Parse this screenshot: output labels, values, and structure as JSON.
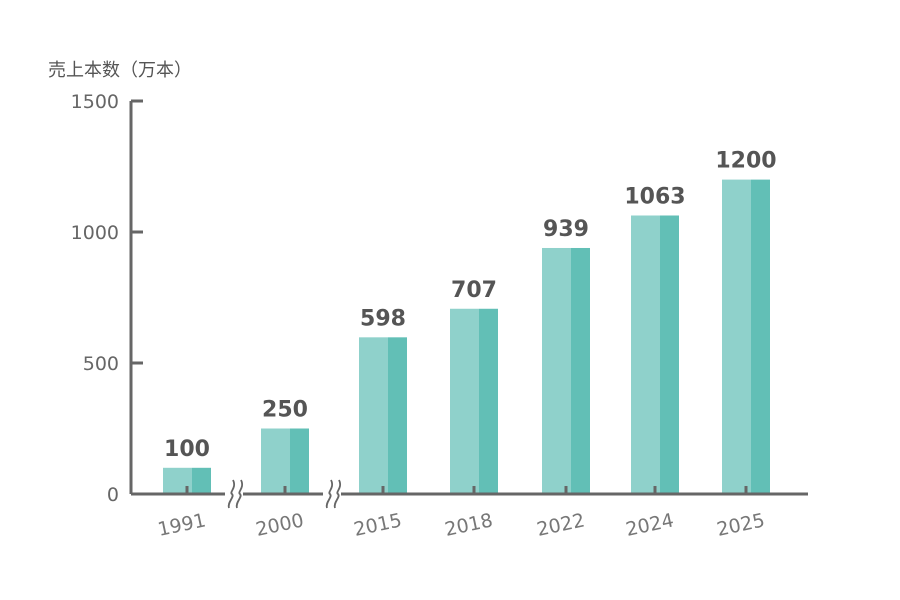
{
  "chart_data": {
    "type": "bar",
    "ylabel": "売上本数（万本）",
    "categories": [
      "1991",
      "2000",
      "2015",
      "2018",
      "2022",
      "2024",
      "2025"
    ],
    "values": [
      100,
      250,
      598,
      707,
      939,
      1063,
      1200
    ],
    "ylim": [
      0,
      1500
    ],
    "yticks": [
      "0",
      "500",
      "1000",
      "1500"
    ],
    "axis_breaks_after": [
      "1991",
      "2000"
    ],
    "grid": false,
    "colors": {
      "bar_light": "#8fd1cb",
      "bar_dark": "#62bfb6",
      "axis": "#666666"
    }
  }
}
